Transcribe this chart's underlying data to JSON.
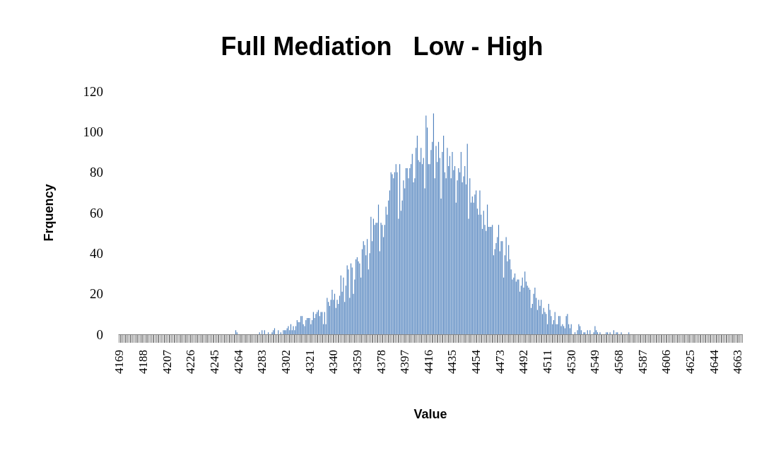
{
  "chart_data": {
    "type": "bar",
    "title": "Full Mediation   Low - High",
    "xlabel": "Value",
    "ylabel": "Frquency",
    "color": "#4f81bd",
    "ylim": [
      0,
      120
    ],
    "yticks": [
      0,
      20,
      40,
      60,
      80,
      100,
      120
    ],
    "categories": [
      "4169",
      null,
      null,
      null,
      null,
      null,
      null,
      null,
      null,
      null,
      null,
      null,
      null,
      null,
      null,
      null,
      null,
      null,
      null,
      "4188",
      null,
      null,
      null,
      null,
      null,
      null,
      null,
      null,
      null,
      null,
      null,
      null,
      null,
      null,
      null,
      null,
      null,
      null,
      "4207",
      null,
      null,
      null,
      null,
      null,
      null,
      null,
      null,
      null,
      null,
      null,
      null,
      null,
      null,
      null,
      null,
      null,
      null,
      "4226",
      null,
      null,
      null,
      null,
      null,
      null,
      null,
      null,
      null,
      null,
      null,
      null,
      null,
      null,
      null,
      null,
      null,
      null,
      "4245",
      null,
      null,
      null,
      null,
      null,
      null,
      null,
      null,
      null,
      null,
      null,
      null,
      null,
      null,
      null,
      null,
      null,
      null,
      "4264",
      null,
      null,
      null,
      null,
      null,
      null,
      null,
      null,
      null,
      null,
      null,
      null,
      null,
      null,
      null,
      null,
      null,
      null,
      "4283",
      null,
      null,
      null,
      null,
      null,
      null,
      null,
      null,
      null,
      null,
      null,
      null,
      null,
      null,
      null,
      null,
      null,
      null,
      "4302",
      null,
      null,
      null,
      null,
      null,
      null,
      null,
      null,
      null,
      null,
      null,
      null,
      null,
      null,
      null,
      null,
      null,
      null,
      "4321",
      null,
      null,
      null,
      null,
      null,
      null,
      null,
      null,
      null,
      null,
      null,
      null,
      null,
      null,
      null,
      null,
      null,
      null,
      "4340",
      null,
      null,
      null,
      null,
      null,
      null,
      null,
      null,
      null,
      null,
      null,
      null,
      null,
      null,
      null,
      null,
      null,
      null,
      "4359",
      null,
      null,
      null,
      null,
      null,
      null,
      null,
      null,
      null,
      null,
      null,
      null,
      null,
      null,
      null,
      null,
      null,
      null,
      "4378",
      null,
      null,
      null,
      null,
      null,
      null,
      null,
      null,
      null,
      null,
      null,
      null,
      null,
      null,
      null,
      null,
      null,
      null,
      "4397",
      null,
      null,
      null,
      null,
      null,
      null,
      null,
      null,
      null,
      null,
      null,
      null,
      null,
      null,
      null,
      null,
      null,
      null,
      "4416",
      null,
      null,
      null,
      null,
      null,
      null,
      null,
      null,
      null,
      null,
      null,
      null,
      null,
      null,
      null,
      null,
      null,
      null,
      "4435",
      null,
      null,
      null,
      null,
      null,
      null,
      null,
      null,
      null,
      null,
      null,
      null,
      null,
      null,
      null,
      null,
      null,
      null,
      "4454",
      null,
      null,
      null,
      null,
      null,
      null,
      null,
      null,
      null,
      null,
      null,
      null,
      null,
      null,
      null,
      null,
      null,
      null,
      "4473",
      null,
      null,
      null,
      null,
      null,
      null,
      null,
      null,
      null,
      null,
      null,
      null,
      null,
      null,
      null,
      null,
      null,
      null,
      "4492",
      null,
      null,
      null,
      null,
      null,
      null,
      null,
      null,
      null,
      null,
      null,
      null,
      null,
      null,
      null,
      null,
      null,
      null,
      "4511",
      null,
      null,
      null,
      null,
      null,
      null,
      null,
      null,
      null,
      null,
      null,
      null,
      null,
      null,
      null,
      null,
      null,
      null,
      "4530",
      null,
      null,
      null,
      null,
      null,
      null,
      null,
      null,
      null,
      null,
      null,
      null,
      null,
      null,
      null,
      null,
      null,
      null,
      "4549",
      null,
      null,
      null,
      null,
      null,
      null,
      null,
      null,
      null,
      null,
      null,
      null,
      null,
      null,
      null,
      null,
      null,
      null,
      "4568",
      null,
      null,
      null,
      null,
      null,
      null,
      null,
      null,
      null,
      null,
      null,
      null,
      null,
      null,
      null,
      null,
      null,
      null,
      "4587",
      null,
      null,
      null,
      null,
      null,
      null,
      null,
      null,
      null,
      null,
      null,
      null,
      null,
      null,
      null,
      null,
      null,
      null,
      "4606",
      null,
      null,
      null,
      null,
      null,
      null,
      null,
      null,
      null,
      null,
      null,
      null,
      null,
      null,
      null,
      null,
      null,
      null,
      "4625",
      null,
      null,
      null,
      null,
      null,
      null,
      null,
      null,
      null,
      null,
      null,
      null,
      null,
      null,
      null,
      null,
      null,
      null,
      "4644",
      null,
      null,
      null,
      null,
      null,
      null,
      null,
      null,
      null,
      null,
      null,
      null,
      null,
      null,
      null,
      null,
      null,
      null,
      "4663",
      null,
      null,
      null
    ],
    "values": [
      0,
      0,
      0,
      0,
      0,
      0,
      0,
      0,
      0,
      0,
      0,
      0,
      0,
      0,
      0,
      0,
      0,
      0,
      0,
      0,
      0,
      0,
      0,
      0,
      0,
      0,
      0,
      0,
      0,
      0,
      0,
      0,
      0,
      0,
      0,
      0,
      0,
      0,
      0,
      0,
      0,
      0,
      0,
      0,
      0,
      0,
      0,
      0,
      0,
      0,
      0,
      0,
      0,
      0,
      0,
      0,
      0,
      0,
      0,
      0,
      0,
      0,
      0,
      0,
      0,
      0,
      0,
      0,
      0,
      0,
      0,
      0,
      0,
      0,
      0,
      0,
      0,
      0,
      0,
      0,
      0,
      0,
      0,
      0,
      0,
      0,
      0,
      0,
      0,
      0,
      0,
      0,
      0,
      2,
      1,
      0,
      0,
      0,
      0,
      0,
      0,
      0,
      0,
      0,
      0,
      0,
      0,
      0,
      0,
      0,
      0,
      0,
      1,
      0,
      2,
      0,
      2,
      0,
      0,
      1,
      0,
      0,
      1,
      2,
      3,
      0,
      0,
      2,
      0,
      1,
      0,
      2,
      2,
      2,
      3,
      4,
      2,
      5,
      2,
      4,
      2,
      4,
      7,
      6,
      6,
      9,
      9,
      5,
      4,
      7,
      8,
      8,
      8,
      5,
      7,
      11,
      8,
      10,
      11,
      12,
      9,
      11,
      11,
      5,
      11,
      5,
      18,
      16,
      14,
      17,
      22,
      17,
      20,
      13,
      17,
      15,
      19,
      29,
      21,
      28,
      16,
      24,
      34,
      32,
      18,
      35,
      33,
      20,
      27,
      37,
      38,
      36,
      35,
      28,
      42,
      46,
      44,
      39,
      47,
      32,
      40,
      58,
      46,
      57,
      54,
      55,
      55,
      64,
      41,
      55,
      54,
      48,
      54,
      63,
      59,
      66,
      71,
      80,
      79,
      77,
      80,
      84,
      80,
      57,
      84,
      61,
      66,
      76,
      72,
      82,
      82,
      77,
      82,
      84,
      89,
      75,
      77,
      92,
      98,
      86,
      85,
      92,
      84,
      87,
      72,
      108,
      102,
      84,
      84,
      91,
      95,
      109,
      77,
      93,
      85,
      95,
      87,
      67,
      90,
      98,
      80,
      77,
      92,
      83,
      88,
      77,
      90,
      81,
      83,
      65,
      76,
      82,
      80,
      90,
      75,
      78,
      83,
      74,
      94,
      57,
      77,
      65,
      68,
      65,
      69,
      71,
      62,
      59,
      71,
      59,
      52,
      61,
      54,
      51,
      64,
      53,
      53,
      53,
      54,
      39,
      42,
      45,
      48,
      54,
      41,
      46,
      46,
      28,
      39,
      48,
      36,
      44,
      37,
      32,
      27,
      28,
      30,
      26,
      27,
      27,
      21,
      24,
      28,
      23,
      31,
      26,
      24,
      23,
      22,
      13,
      15,
      20,
      23,
      18,
      12,
      17,
      14,
      17,
      10,
      13,
      11,
      10,
      5,
      15,
      12,
      9,
      5,
      7,
      11,
      5,
      5,
      9,
      9,
      4,
      5,
      4,
      3,
      9,
      10,
      5,
      3,
      5,
      0,
      0,
      1,
      0,
      2,
      5,
      4,
      2,
      0,
      1,
      1,
      0,
      2,
      0,
      2,
      0,
      0,
      1,
      4,
      2,
      1,
      0,
      1,
      0,
      0,
      0,
      0,
      1,
      1,
      0,
      1,
      0,
      0,
      2,
      0,
      1,
      1,
      0,
      0,
      1,
      0,
      0,
      0,
      0,
      0,
      1,
      0,
      0,
      0,
      0,
      0,
      0,
      0,
      0,
      0,
      0,
      0,
      0,
      0,
      0,
      0,
      0,
      0,
      0,
      0,
      0,
      0,
      0,
      0,
      0,
      0,
      0,
      0,
      0,
      0,
      0,
      0,
      0,
      0,
      0,
      0,
      0,
      0,
      0,
      0,
      0,
      0,
      0,
      0,
      0,
      0,
      0,
      0,
      0,
      0,
      0,
      0,
      0,
      0,
      0,
      0,
      0,
      0,
      0,
      0,
      0,
      0,
      0,
      0,
      0,
      0,
      0,
      0,
      0,
      0,
      0,
      0,
      0,
      0,
      0,
      0,
      0,
      0,
      0,
      0,
      0,
      0,
      0,
      0,
      0,
      0,
      0,
      0,
      0,
      0,
      0
    ]
  }
}
